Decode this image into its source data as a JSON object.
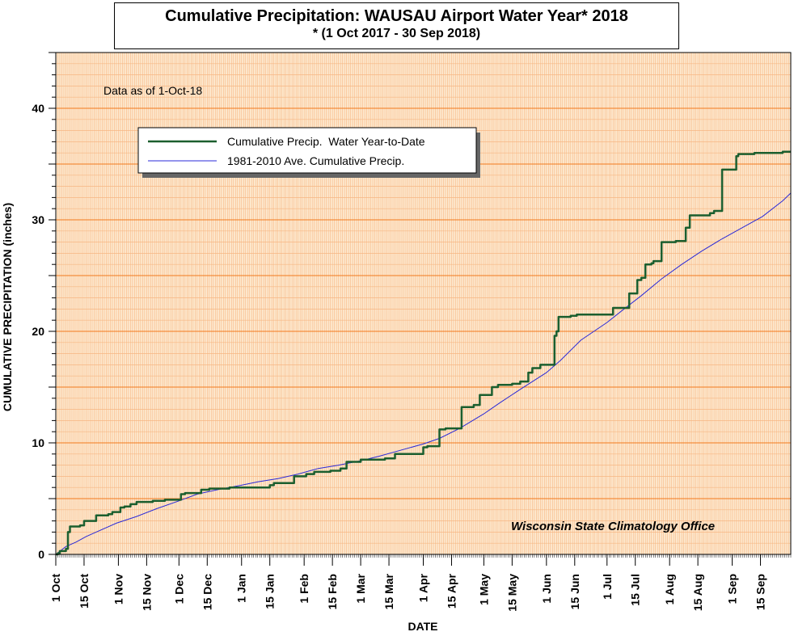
{
  "chart_data": {
    "type": "line",
    "title": "Cumulative Precipitation: WAUSAU Airport Water Year* 2018",
    "subtitle": "* (1 Oct 2017 - 30 Sep 2018)",
    "xlabel": "DATE",
    "ylabel": "CUMULATIVE PRECIPITATION (inches)",
    "annotation": "Data as of 1-Oct-18",
    "credit": "Wisconsin State Climatology Office",
    "ylim": [
      0,
      45
    ],
    "y_ticks": [
      0,
      10,
      20,
      30,
      40
    ],
    "xlim_days": [
      0,
      364
    ],
    "x_tick_labels": [
      "1 Oct",
      "15 Oct",
      "1 Nov",
      "15 Nov",
      "1 Dec",
      "15 Dec",
      "1 Jan",
      "15 Jan",
      "1 Feb",
      "15 Feb",
      "1 Mar",
      "15 Mar",
      "1 Apr",
      "15 Apr",
      "1 May",
      "15 May",
      "1 Jun",
      "15 Jun",
      "1 Jul",
      "15 Jul",
      "1 Aug",
      "15 Aug",
      "1 Sep",
      "15 Sep"
    ],
    "x_tick_days": [
      0,
      14,
      31,
      45,
      61,
      75,
      92,
      106,
      123,
      137,
      151,
      165,
      182,
      196,
      212,
      226,
      243,
      257,
      273,
      287,
      304,
      318,
      335,
      349
    ],
    "grid": true,
    "legend_position": "top-left",
    "colors": {
      "actual": "#1b5e2e",
      "normal": "#2a2ad8",
      "plot_bg": "#fde9cf",
      "minor_grid": "#f7b682",
      "major_grid": "#f27a1e"
    },
    "series": [
      {
        "name": "Cumulative Precip.  Water Year-to-Date",
        "step": true,
        "x": [
          0,
          1,
          2,
          4,
          5,
          6,
          7,
          8,
          12,
          14,
          18,
          20,
          26,
          28,
          32,
          34,
          37,
          40,
          48,
          52,
          54,
          57,
          62,
          64,
          70,
          72,
          76,
          78,
          86,
          90,
          100,
          106,
          108,
          111,
          114,
          118,
          124,
          128,
          136,
          137,
          141,
          143,
          144,
          151,
          163,
          168,
          174,
          176,
          178,
          182,
          184,
          185,
          190,
          193,
          194,
          195,
          201,
          206,
          207,
          210,
          216,
          219,
          226,
          230,
          234,
          236,
          240,
          243,
          247,
          248,
          249,
          255,
          256,
          258,
          264,
          266,
          276,
          284,
          288,
          290,
          292,
          295,
          296,
          300,
          306,
          307,
          312,
          314,
          324,
          326,
          330,
          332,
          335,
          336,
          337,
          338,
          345,
          346,
          355,
          358,
          360,
          364
        ],
        "y": [
          0,
          0.1,
          0.3,
          0.3,
          0.5,
          2.0,
          2.5,
          2.5,
          2.6,
          3.0,
          3.0,
          3.5,
          3.6,
          3.8,
          4.2,
          4.3,
          4.5,
          4.7,
          4.8,
          4.8,
          4.9,
          4.9,
          5.4,
          5.5,
          5.5,
          5.8,
          5.9,
          5.9,
          6.0,
          6.0,
          6.0,
          6.2,
          6.4,
          6.4,
          6.4,
          7.0,
          7.2,
          7.4,
          7.5,
          7.5,
          7.7,
          7.7,
          8.3,
          8.5,
          8.6,
          9.0,
          9.0,
          9.0,
          9.0,
          9.6,
          9.7,
          9.7,
          11.2,
          11.3,
          11.3,
          11.3,
          13.2,
          13.2,
          13.4,
          14.3,
          15.0,
          15.2,
          15.3,
          15.5,
          16.3,
          16.7,
          17.0,
          17.0,
          19.6,
          20.0,
          21.3,
          21.4,
          21.4,
          21.5,
          21.5,
          21.5,
          22.1,
          23.4,
          24.6,
          24.8,
          26.0,
          26.1,
          26.3,
          28.0,
          28.0,
          28.1,
          29.3,
          30.4,
          30.6,
          30.8,
          34.5,
          34.5,
          34.5,
          34.5,
          35.7,
          35.9,
          35.9,
          36.0,
          36.0,
          36.0,
          36.1,
          36.1
        ]
      },
      {
        "name": "1981-2010 Ave. Cumulative Precip.",
        "step": false,
        "x": [
          0,
          5,
          10,
          15,
          20,
          25,
          30,
          40,
          50,
          61,
          70,
          80,
          92,
          100,
          110,
          120,
          130,
          140,
          151,
          160,
          170,
          182,
          190,
          200,
          212,
          220,
          230,
          243,
          250,
          260,
          273,
          280,
          290,
          300,
          310,
          320,
          330,
          340,
          350,
          360,
          364
        ],
        "y": [
          0,
          0.7,
          1.1,
          1.6,
          2.0,
          2.4,
          2.8,
          3.4,
          4.1,
          4.8,
          5.4,
          5.8,
          6.2,
          6.5,
          6.8,
          7.2,
          7.7,
          8.0,
          8.4,
          8.8,
          9.3,
          9.9,
          10.4,
          11.3,
          12.6,
          13.6,
          14.8,
          16.3,
          17.4,
          19.2,
          20.8,
          21.8,
          23.2,
          24.7,
          26.0,
          27.2,
          28.3,
          29.3,
          30.3,
          31.7,
          32.4
        ]
      }
    ]
  }
}
